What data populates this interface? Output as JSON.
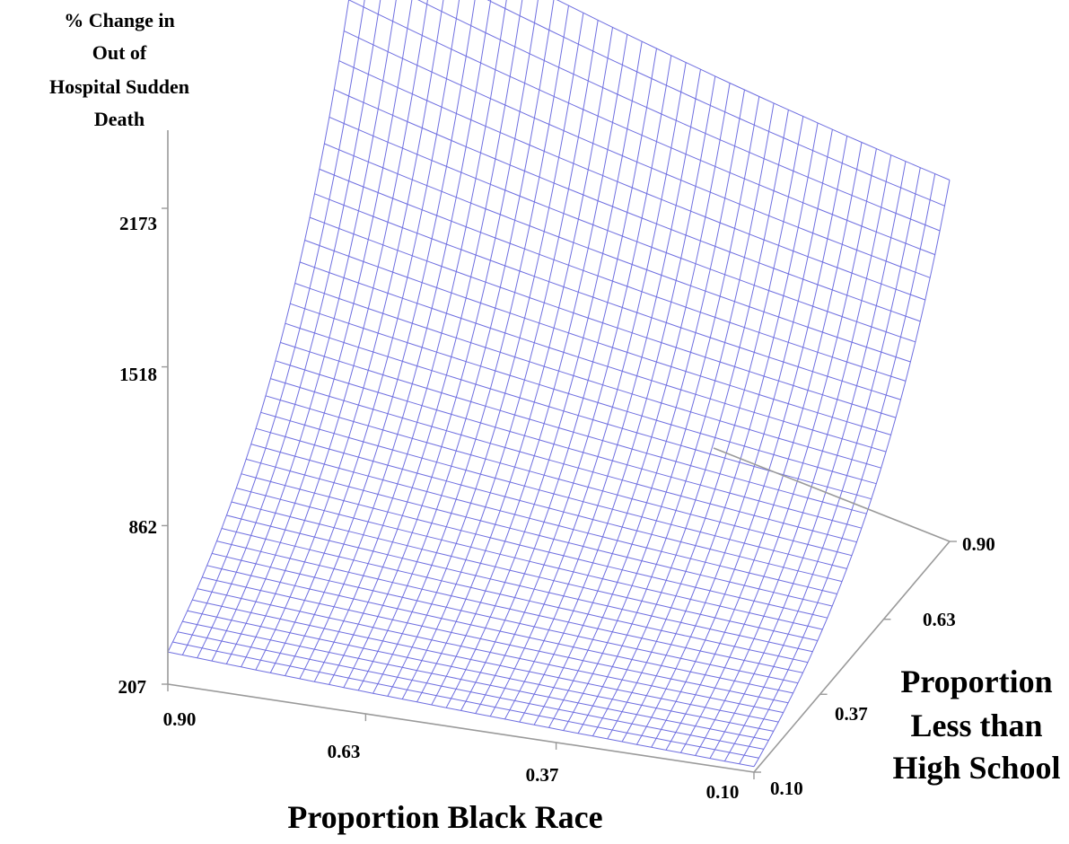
{
  "chart_data": {
    "type": "surface",
    "zlabel": [
      "% Change in",
      "Out of",
      "Hospital Sudden",
      "Death"
    ],
    "xlabel": "Proportion Black Race",
    "ylabel": [
      "Proportion",
      "Less than",
      "High School"
    ],
    "z_ticks": [
      "2173",
      "1518",
      "862",
      "207"
    ],
    "x_ticks": [
      "0.90",
      "0.63",
      "0.37",
      "0.10"
    ],
    "y_ticks": [
      "0.90",
      "0.63",
      "0.37",
      "0.10"
    ],
    "zlim": [
      207,
      2173
    ],
    "xlim": [
      0.1,
      0.9
    ],
    "ylim": [
      0.1,
      0.9
    ],
    "grid_divisions": {
      "black_race": 40,
      "less_than_high_school": 40
    },
    "corner_values": [
      {
        "black_race": 0.9,
        "less_than_high_school": 0.1,
        "percent_change": 340
      },
      {
        "black_race": 0.1,
        "less_than_high_school": 0.1,
        "percent_change": 230
      },
      {
        "black_race": 0.9,
        "less_than_high_school": 0.9,
        "percent_change": 2500
      },
      {
        "black_race": 0.1,
        "less_than_high_school": 0.9,
        "percent_change": 1700
      }
    ],
    "mesh_color": "#6f6fe0",
    "axis_color": "#9a9a9a"
  }
}
